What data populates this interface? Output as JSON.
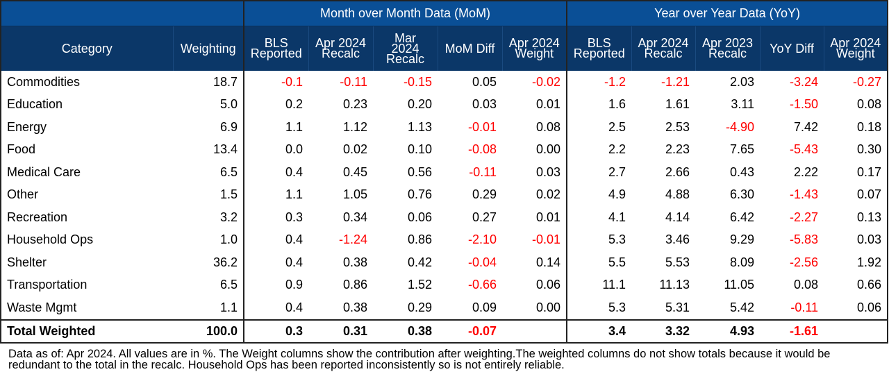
{
  "groups": {
    "mom": "Month over Month Data (MoM)",
    "yoy": "Year over Year Data (YoY)"
  },
  "columns": [
    "Category",
    "Weighting",
    "BLS Reported",
    "Apr 2024 Recalc",
    "Mar 2024 Recalc",
    "MoM Diff",
    "Apr 2024 Weight",
    "BLS Reported",
    "Apr 2024 Recalc",
    "Apr 2023 Recalc",
    "YoY Diff",
    "Apr 2024 Weight"
  ],
  "rows": [
    [
      "Commodities",
      "18.7",
      "-0.1",
      "-0.11",
      "-0.15",
      "0.05",
      "-0.02",
      "-1.2",
      "-1.21",
      "2.03",
      "-3.24",
      "-0.27"
    ],
    [
      "Education",
      "5.0",
      "0.2",
      "0.23",
      "0.20",
      "0.03",
      "0.01",
      "1.6",
      "1.61",
      "3.11",
      "-1.50",
      "0.08"
    ],
    [
      "Energy",
      "6.9",
      "1.1",
      "1.12",
      "1.13",
      "-0.01",
      "0.08",
      "2.5",
      "2.53",
      "-4.90",
      "7.42",
      "0.18"
    ],
    [
      "Food",
      "13.4",
      "0.0",
      "0.02",
      "0.10",
      "-0.08",
      "0.00",
      "2.2",
      "2.23",
      "7.65",
      "-5.43",
      "0.30"
    ],
    [
      "Medical Care",
      "6.5",
      "0.4",
      "0.45",
      "0.56",
      "-0.11",
      "0.03",
      "2.7",
      "2.66",
      "0.43",
      "2.22",
      "0.17"
    ],
    [
      "Other",
      "1.5",
      "1.1",
      "1.05",
      "0.76",
      "0.29",
      "0.02",
      "4.9",
      "4.88",
      "6.30",
      "-1.43",
      "0.07"
    ],
    [
      "Recreation",
      "3.2",
      "0.3",
      "0.34",
      "0.06",
      "0.27",
      "0.01",
      "4.1",
      "4.14",
      "6.42",
      "-2.27",
      "0.13"
    ],
    [
      "Household Ops",
      "1.0",
      "0.4",
      "-1.24",
      "0.86",
      "-2.10",
      "-0.01",
      "5.3",
      "3.46",
      "9.29",
      "-5.83",
      "0.03"
    ],
    [
      "Shelter",
      "36.2",
      "0.4",
      "0.38",
      "0.42",
      "-0.04",
      "0.14",
      "5.5",
      "5.53",
      "8.09",
      "-2.56",
      "1.92"
    ],
    [
      "Transportation",
      "6.5",
      "0.9",
      "0.86",
      "1.52",
      "-0.66",
      "0.06",
      "11.1",
      "11.13",
      "11.05",
      "0.08",
      "0.66"
    ],
    [
      "Waste Mgmt",
      "1.1",
      "0.4",
      "0.38",
      "0.29",
      "0.09",
      "0.00",
      "5.3",
      "5.31",
      "5.42",
      "-0.11",
      "0.06"
    ]
  ],
  "total": [
    "Total Weighted",
    "100.0",
    "0.3",
    "0.31",
    "0.38",
    "-0.07",
    "",
    "3.4",
    "3.32",
    "4.93",
    "-1.61",
    ""
  ],
  "colors": {
    "header_top": "#0a4f96",
    "header_sub": "#0b3768",
    "negative": "#ff0000"
  },
  "note": "Data as of: Apr 2024. All values are in %. The Weight columns show the contribution after weighting.The weighted columns do not show totals because it would be redundant to the total in the recalc. Household Ops has been reported inconsistently so is not entirely reliable."
}
